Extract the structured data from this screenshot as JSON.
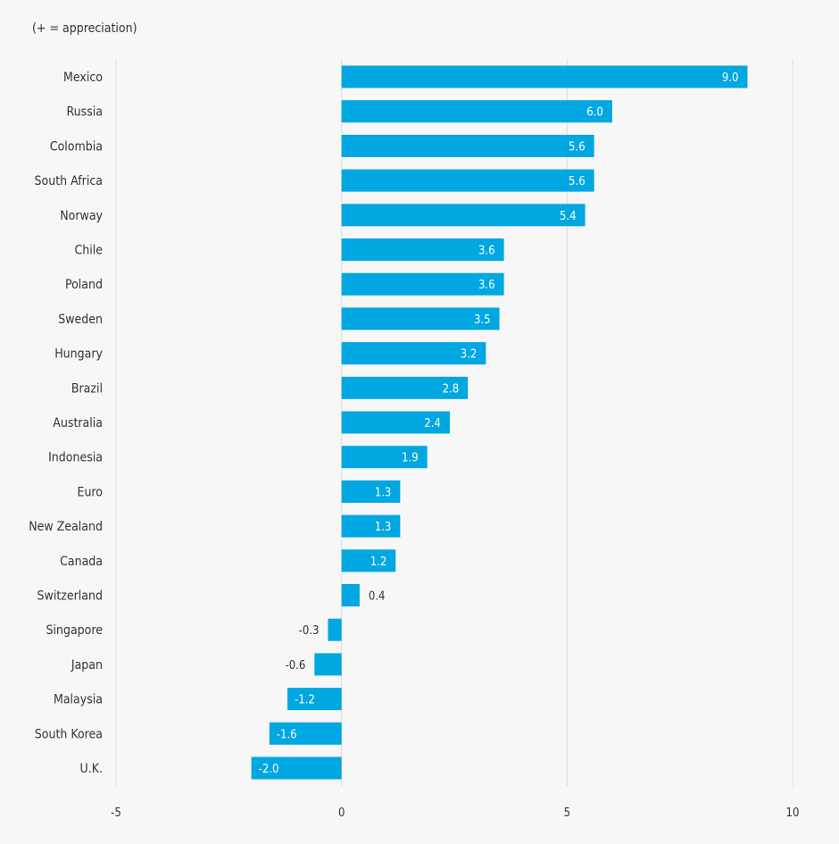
{
  "chart_data": {
    "type": "bar",
    "orientation": "horizontal",
    "subtitle": "(+ = appreciation)",
    "categories": [
      "Mexico",
      "Russia",
      "Colombia",
      "South Africa",
      "Norway",
      "Chile",
      "Poland",
      "Sweden",
      "Hungary",
      "Brazil",
      "Australia",
      "Indonesia",
      "Euro",
      "New Zealand",
      "Canada",
      "Switzerland",
      "Singapore",
      "Japan",
      "Malaysia",
      "South Korea",
      "U.K."
    ],
    "values": [
      9.0,
      6.0,
      5.6,
      5.6,
      5.4,
      3.6,
      3.6,
      3.5,
      3.2,
      2.8,
      2.4,
      1.9,
      1.3,
      1.3,
      1.2,
      0.4,
      -0.3,
      -0.6,
      -1.2,
      -1.6,
      -2.0
    ],
    "xlim": [
      -5,
      10
    ],
    "xticks": [
      -5,
      0,
      5,
      10
    ],
    "xlabel": "",
    "ylabel": "",
    "grid": true,
    "bar_color": "#00a7e1"
  }
}
